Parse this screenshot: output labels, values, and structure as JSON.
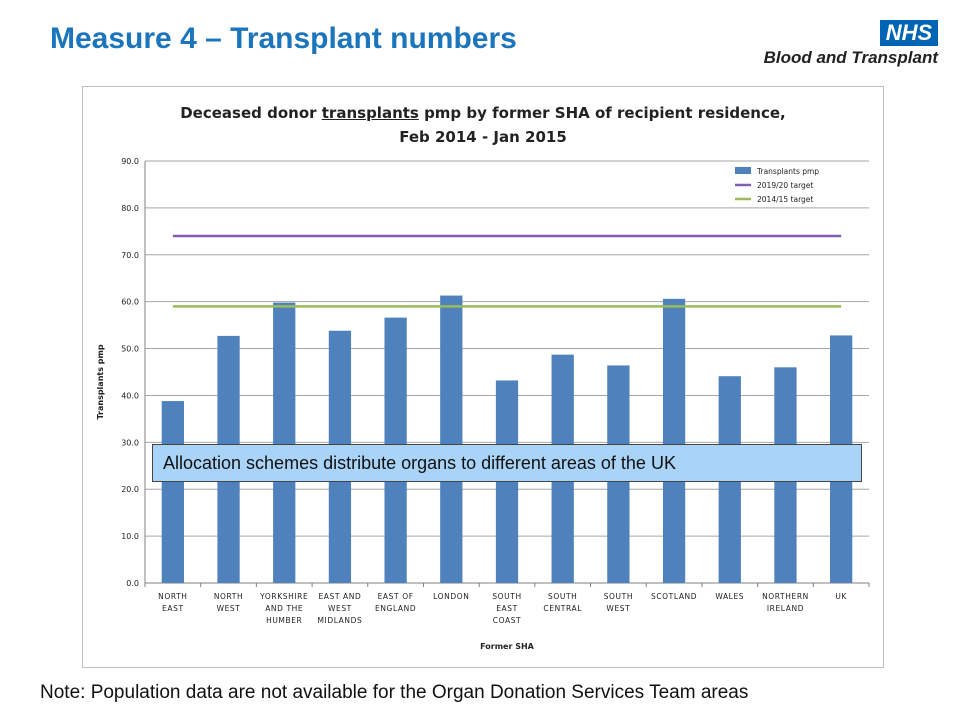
{
  "header": {
    "title": "Measure 4 – Transplant numbers",
    "logo": {
      "badge": "NHS",
      "name": "Blood and Transplant"
    }
  },
  "callout": "Allocation schemes distribute organs to different areas of the UK",
  "note": "Note: Population data are not available for the Organ Donation Services Team areas",
  "colors": {
    "bar": "#4f81bd",
    "target_2019": "#7f5fb3",
    "target_2014": "#9bbb59",
    "title": "#1a75bc"
  },
  "chart_data": {
    "type": "bar",
    "title_line1_pre": "Deceased donor ",
    "title_line1_u": "transplants",
    "title_line1_post": " pmp by former SHA of recipient residence,",
    "title_line2": "Feb 2014 - Jan 2015",
    "xlabel": "Former SHA",
    "ylabel": "Transplants pmp",
    "ylim": [
      0,
      90
    ],
    "yticks": [
      "0.0",
      "10.0",
      "20.0",
      "30.0",
      "40.0",
      "50.0",
      "60.0",
      "70.0",
      "80.0",
      "90.0"
    ],
    "categories": [
      [
        "NORTH",
        "EAST"
      ],
      [
        "NORTH",
        "WEST"
      ],
      [
        "YORKSHIRE",
        "AND THE",
        "HUMBER"
      ],
      [
        "EAST AND",
        "WEST",
        "MIDLANDS"
      ],
      [
        "EAST OF",
        "ENGLAND"
      ],
      [
        "LONDON"
      ],
      [
        "SOUTH",
        "EAST",
        "COAST"
      ],
      [
        "SOUTH",
        "CENTRAL"
      ],
      [
        "SOUTH",
        "WEST"
      ],
      [
        "SCOTLAND"
      ],
      [
        "WALES"
      ],
      [
        "NORTHERN",
        "IRELAND"
      ],
      [
        "UK"
      ]
    ],
    "series": [
      {
        "name": "Transplants pmp",
        "values": [
          38.8,
          52.7,
          59.8,
          53.8,
          56.6,
          61.3,
          43.2,
          48.7,
          46.4,
          60.6,
          44.1,
          46.0,
          52.8
        ]
      }
    ],
    "reference_lines": [
      {
        "name": "2019/20 target",
        "value": 74.0
      },
      {
        "name": "2014/15 target",
        "value": 59.0
      }
    ],
    "grid": true,
    "legend": "top-right"
  }
}
